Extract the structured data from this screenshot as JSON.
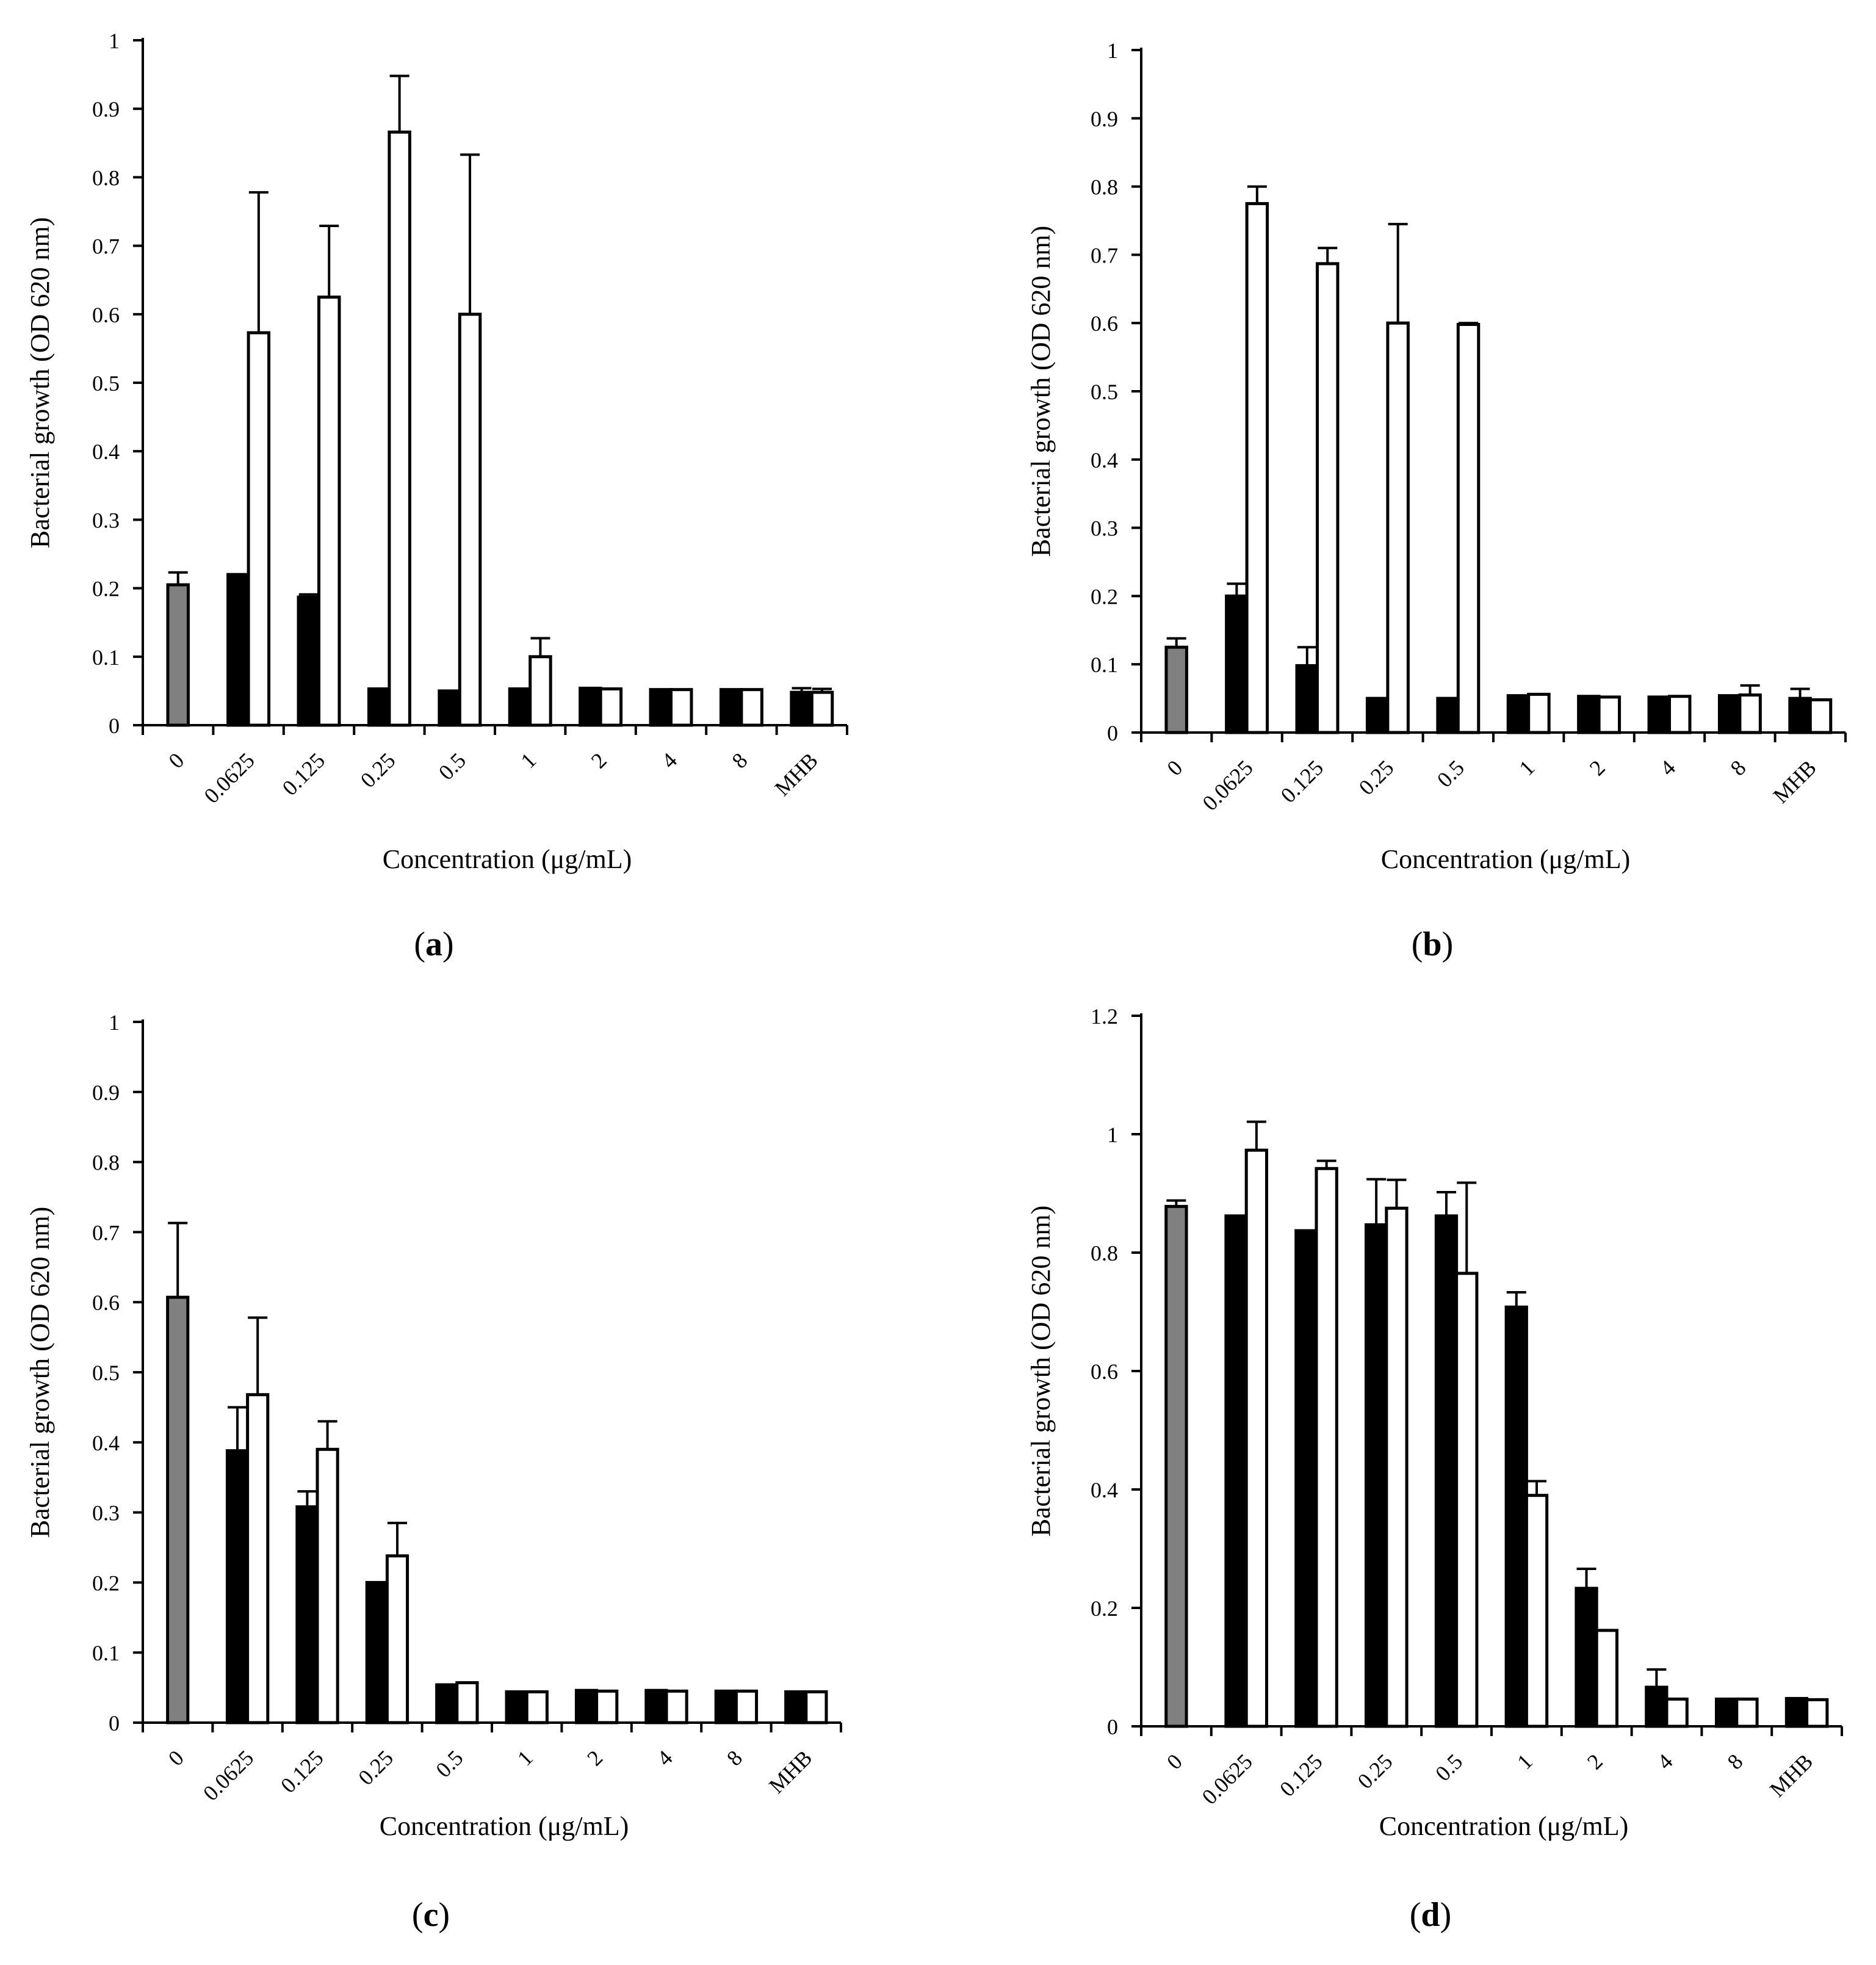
{
  "figure_title": "Bacterial growth (OD 620 nm) vs. concentration, panels a–d",
  "colors": {
    "control_bar": "#808080",
    "series_black": "#000000",
    "series_white": "#ffffff",
    "axis": "#000000"
  },
  "chart_data": [
    {
      "panel": "a",
      "panel_label_open": "(",
      "panel_label_letter": "a",
      "panel_label_close": ")",
      "type": "bar",
      "xlabel": "Concentration (μg/mL)",
      "ylabel": "Bacterial growth (OD 620 nm)",
      "ylim": [
        0,
        1
      ],
      "yticks": [
        "0",
        "0.1",
        "0.2",
        "0.3",
        "0.4",
        "0.5",
        "0.6",
        "0.7",
        "0.8",
        "0.9",
        "1"
      ],
      "ytick_values": [
        0,
        0.1,
        0.2,
        0.3,
        0.4,
        0.5,
        0.6,
        0.7,
        0.8,
        0.9,
        1
      ],
      "categories": [
        "0",
        "0.0625",
        "0.125",
        "0.25",
        "0.5",
        "1",
        "2",
        "4",
        "8",
        "MHB"
      ],
      "control": {
        "value": 0.205,
        "error": 0.018
      },
      "series": [
        {
          "name": "black",
          "values": [
            null,
            0.22,
            0.187,
            0.053,
            0.05,
            0.053,
            0.054,
            0.052,
            0.052,
            0.048
          ],
          "errors": [
            null,
            0,
            0.004,
            0,
            0,
            0,
            0,
            0,
            0,
            0.006
          ]
        },
        {
          "name": "white",
          "values": [
            null,
            0.573,
            0.625,
            0.866,
            0.6,
            0.1,
            0.053,
            0.052,
            0.052,
            0.048
          ],
          "errors": [
            null,
            0.205,
            0.104,
            0.082,
            0.233,
            0.027,
            0,
            0,
            0,
            0.005
          ]
        }
      ]
    },
    {
      "panel": "b",
      "panel_label_open": "(",
      "panel_label_letter": "b",
      "panel_label_close": ")",
      "type": "bar",
      "xlabel": "Concentration (μg/mL)",
      "ylabel": "Bacterial growth (OD 620 nm)",
      "ylim": [
        0,
        1
      ],
      "yticks": [
        "0",
        "0.1",
        "0.2",
        "0.3",
        "0.4",
        "0.5",
        "0.6",
        "0.7",
        "0.8",
        "0.9",
        "1"
      ],
      "ytick_values": [
        0,
        0.1,
        0.2,
        0.3,
        0.4,
        0.5,
        0.6,
        0.7,
        0.8,
        0.9,
        1
      ],
      "categories": [
        "0",
        "0.0625",
        "0.125",
        "0.25",
        "0.5",
        "1",
        "2",
        "4",
        "8",
        "MHB"
      ],
      "control": {
        "value": 0.125,
        "error": 0.013
      },
      "series": [
        {
          "name": "black",
          "values": [
            null,
            0.2,
            0.098,
            0.05,
            0.05,
            0.054,
            0.053,
            0.052,
            0.054,
            0.05
          ],
          "errors": [
            null,
            0.018,
            0.027,
            0,
            0,
            0,
            0,
            0,
            0,
            0.014
          ]
        },
        {
          "name": "white",
          "values": [
            null,
            0.775,
            0.687,
            0.6,
            0.598,
            0.056,
            0.052,
            0.053,
            0.055,
            0.048
          ],
          "errors": [
            null,
            0.025,
            0.023,
            0.145,
            0.002,
            0,
            0,
            0,
            0.014,
            0
          ]
        }
      ]
    },
    {
      "panel": "c",
      "panel_label_open": "(",
      "panel_label_letter": "c",
      "panel_label_close": ")",
      "type": "bar",
      "xlabel": "Concentration (μg/mL)",
      "ylabel": "Bacterial growth (OD 620 nm)",
      "ylim": [
        0,
        1
      ],
      "yticks": [
        "0",
        "0.1",
        "0.2",
        "0.3",
        "0.4",
        "0.5",
        "0.6",
        "0.7",
        "0.8",
        "0.9",
        "1"
      ],
      "ytick_values": [
        0,
        0.1,
        0.2,
        0.3,
        0.4,
        0.5,
        0.6,
        0.7,
        0.8,
        0.9,
        1
      ],
      "categories": [
        "0",
        "0.0625",
        "0.125",
        "0.25",
        "0.5",
        "1",
        "2",
        "4",
        "8",
        "MHB"
      ],
      "control": {
        "value": 0.607,
        "error": 0.106
      },
      "series": [
        {
          "name": "black",
          "values": [
            null,
            0.388,
            0.308,
            0.2,
            0.054,
            0.044,
            0.046,
            0.046,
            0.045,
            0.044
          ],
          "errors": [
            null,
            0.062,
            0.022,
            0,
            0,
            0,
            0,
            0,
            0,
            0
          ]
        },
        {
          "name": "white",
          "values": [
            null,
            0.468,
            0.39,
            0.238,
            0.057,
            0.044,
            0.045,
            0.045,
            0.045,
            0.044
          ],
          "errors": [
            null,
            0.11,
            0.04,
            0.047,
            0,
            0,
            0,
            0,
            0,
            0
          ]
        }
      ]
    },
    {
      "panel": "d",
      "panel_label_open": "(",
      "panel_label_letter": "d",
      "panel_label_close": ")",
      "type": "bar",
      "xlabel": "Concentration (μg/mL)",
      "ylabel": "Bacterial growth (OD 620 nm)",
      "ylim": [
        0,
        1.2
      ],
      "yticks": [
        "0",
        "0.2",
        "0.4",
        "0.6",
        "0.8",
        "1",
        "1.2"
      ],
      "ytick_values": [
        0,
        0.2,
        0.4,
        0.6,
        0.8,
        1,
        1.2
      ],
      "categories": [
        "0",
        "0.0625",
        "0.125",
        "0.25",
        "0.5",
        "1",
        "2",
        "4",
        "8",
        "MHB"
      ],
      "control": {
        "value": 0.878,
        "error": 0.01
      },
      "series": [
        {
          "name": "black",
          "values": [
            null,
            0.862,
            0.837,
            0.847,
            0.862,
            0.708,
            0.233,
            0.066,
            0.046,
            0.047
          ],
          "errors": [
            null,
            0,
            0,
            0.077,
            0.04,
            0.025,
            0.033,
            0.03,
            0,
            0
          ]
        },
        {
          "name": "white",
          "values": [
            null,
            0.973,
            0.942,
            0.875,
            0.765,
            0.39,
            0.162,
            0.046,
            0.046,
            0.045
          ],
          "errors": [
            null,
            0.048,
            0.013,
            0.048,
            0.153,
            0.024,
            0,
            0,
            0,
            0
          ]
        }
      ]
    }
  ]
}
